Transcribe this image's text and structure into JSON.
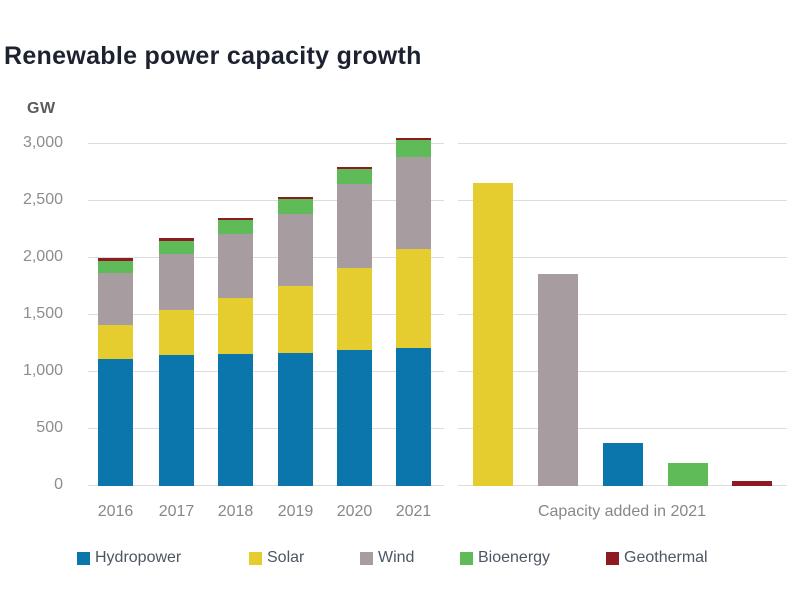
{
  "title": "Renewable power capacity growth",
  "axis": {
    "unit_label": "GW",
    "tick_labels": [
      "3,000",
      "2,500",
      "2,000",
      "1,500",
      "1,000",
      "500",
      "0"
    ],
    "max": 3000
  },
  "right_caption": "Capacity added in 2021",
  "colors": {
    "hydropower": "#0b76ac",
    "solar": "#e5cd2f",
    "wind": "#a79c9f",
    "bioenergy": "#5fba58",
    "geothermal": "#8e1b22",
    "gridline": "#dcdcde",
    "title_text": "#1d2230",
    "axis_text": "#8b8d90"
  },
  "legend": [
    {
      "label": "Hydropower",
      "color": "#0b76ac"
    },
    {
      "label": "Solar",
      "color": "#e5cd2f"
    },
    {
      "label": "Wind",
      "color": "#a79c9f"
    },
    {
      "label": "Bioenergy",
      "color": "#5fba58"
    },
    {
      "label": "Geothermal",
      "color": "#8e1b22"
    }
  ],
  "chart_data": [
    {
      "type": "bar",
      "stacked": true,
      "title": "Renewable power capacity growth",
      "ylabel": "GW",
      "ylim": [
        0,
        3000
      ],
      "yticks": [
        0,
        500,
        1000,
        1500,
        2000,
        2500,
        3000
      ],
      "grid": true,
      "categories": [
        "2016",
        "2017",
        "2018",
        "2019",
        "2020",
        "2021"
      ],
      "series": [
        {
          "name": "Hydropower",
          "color": "#0b76ac",
          "values": [
            1110,
            1150,
            1155,
            1170,
            1195,
            1210
          ]
        },
        {
          "name": "Solar",
          "color": "#e5cd2f",
          "values": [
            305,
            390,
            495,
            585,
            720,
            865
          ]
        },
        {
          "name": "Wind",
          "color": "#a79c9f",
          "values": [
            450,
            495,
            560,
            635,
            730,
            815
          ]
        },
        {
          "name": "Bioenergy",
          "color": "#5fba58",
          "values": [
            110,
            115,
            120,
            125,
            135,
            145
          ]
        },
        {
          "name": "Geothermal",
          "color": "#8e1b22",
          "values": [
            13,
            13,
            13,
            14,
            14,
            16
          ]
        }
      ],
      "totals_approx_gw": [
        1988,
        2163,
        2343,
        2529,
        2794,
        3051
      ]
    },
    {
      "type": "bar",
      "title": "Capacity added in 2021",
      "categories": [
        "Solar",
        "Wind",
        "Hydropower",
        "Bioenergy",
        "Geothermal"
      ],
      "values": [
        133,
        93,
        19,
        10,
        2
      ],
      "unit": "GW",
      "bar_colors": [
        "#e5cd2f",
        "#a79c9f",
        "#0b76ac",
        "#5fba58",
        "#8e1b22"
      ],
      "scale_multiplier_vs_left_axis": 20,
      "note": "bars drawn at 20x the shared left axis scale; no separate axis labels shown"
    }
  ]
}
